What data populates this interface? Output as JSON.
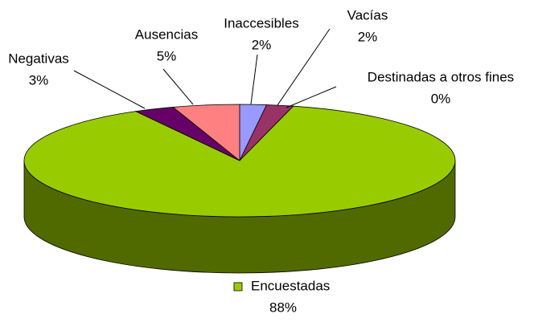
{
  "chart_data": {
    "type": "pie3d",
    "categories": [
      "Inaccesibles",
      "Vacías",
      "Destinadas a otros fines",
      "Encuestadas",
      "Negativas",
      "Ausencias"
    ],
    "values": [
      2,
      2,
      0,
      88,
      3,
      5
    ],
    "value_labels": [
      "2%",
      "2%",
      "0%",
      "88%",
      "3%",
      "5%"
    ],
    "colors": [
      "#9999ff",
      "#993366",
      "#ffffcc",
      "#99cc00",
      "#660066",
      "#ff8080"
    ]
  }
}
